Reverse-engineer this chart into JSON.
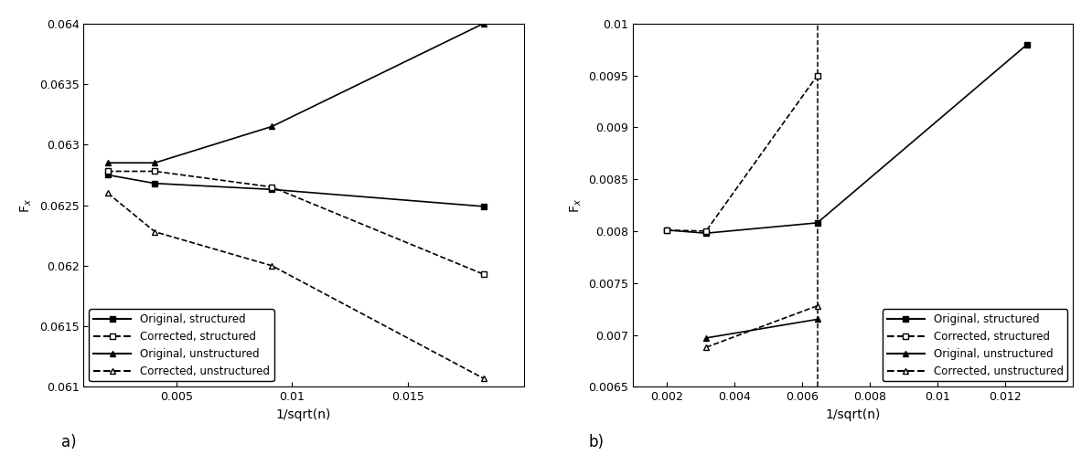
{
  "panel_a": {
    "xlabel": "1/sqrt(n)",
    "ylabel": "F_x",
    "label_a": "a)",
    "xlim": [
      0.001,
      0.02
    ],
    "ylim": [
      0.061,
      0.064
    ],
    "yticks": [
      0.061,
      0.0615,
      0.062,
      0.0625,
      0.063,
      0.0635,
      0.064
    ],
    "xticks": [
      0.005,
      0.01,
      0.015
    ],
    "series": {
      "orig_struct": {
        "x": [
          0.00204,
          0.00408,
          0.00913,
          0.01826
        ],
        "y": [
          0.06275,
          0.06268,
          0.06263,
          0.06249
        ],
        "label": "Original, structured"
      },
      "corr_struct": {
        "x": [
          0.00204,
          0.00408,
          0.00913,
          0.01826
        ],
        "y": [
          0.06278,
          0.06278,
          0.06265,
          0.06193
        ],
        "label": "Corrected, structured"
      },
      "orig_unstruct": {
        "x": [
          0.00204,
          0.00408,
          0.00913,
          0.01826
        ],
        "y": [
          0.06285,
          0.06285,
          0.06315,
          0.064
        ],
        "label": "Original, unstructured"
      },
      "corr_unstruct": {
        "x": [
          0.00204,
          0.00408,
          0.00913,
          0.01826
        ],
        "y": [
          0.0626,
          0.06228,
          0.062,
          0.06107
        ],
        "label": "Corrected, unstructured"
      }
    }
  },
  "panel_b": {
    "xlabel": "1/sqrt(n)",
    "ylabel": "F_x",
    "label_b": "b)",
    "xlim": [
      0.001,
      0.014
    ],
    "ylim": [
      0.0065,
      0.01
    ],
    "yticks": [
      0.0065,
      0.007,
      0.0075,
      0.008,
      0.0085,
      0.009,
      0.0095,
      0.01
    ],
    "xticks": [
      0.002,
      0.004,
      0.006,
      0.008,
      0.01,
      0.012
    ],
    "vline_x": 0.00645,
    "series": {
      "orig_struct": {
        "x": [
          0.002,
          0.00316,
          0.00645,
          0.01265
        ],
        "y": [
          0.00801,
          0.00798,
          0.00808,
          0.0098
        ],
        "label": "Original, structured"
      },
      "corr_struct": {
        "x": [
          0.002,
          0.00316,
          0.00645
        ],
        "y": [
          0.00801,
          0.008,
          0.0095
        ],
        "label": "Corrected, structured"
      },
      "orig_unstruct": {
        "x": [
          0.00316,
          0.00645
        ],
        "y": [
          0.00697,
          0.00715
        ],
        "label": "Original, unstructured"
      },
      "corr_unstruct": {
        "x": [
          0.00316,
          0.00645
        ],
        "y": [
          0.00688,
          0.00728
        ],
        "label": "Corrected, unstructured"
      }
    }
  },
  "line_color": "#000000",
  "marker_size": 5,
  "line_width": 1.2,
  "legend_fontsize": 8.5,
  "axis_fontsize": 10,
  "tick_fontsize": 9
}
